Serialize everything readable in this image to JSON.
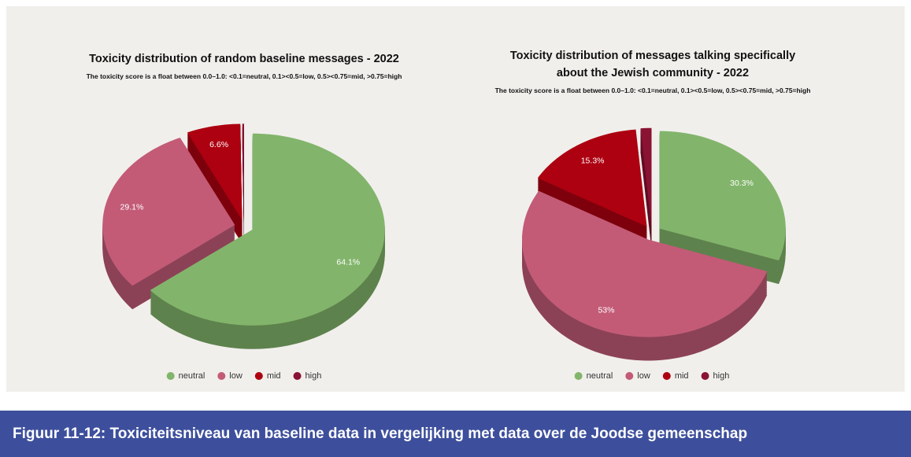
{
  "chart_data": [
    {
      "type": "pie3d",
      "title": "Toxicity distribution of random baseline messages - 2022",
      "subtitle": "The toxicity score is a float between 0.0–1.0: <0.1=neutral, 0.1><0.5=low, 0.5><0.75=mid, >0.75=high",
      "categories": [
        "neutral",
        "low",
        "mid",
        "high"
      ],
      "values": [
        64.1,
        29.1,
        6.6,
        0.2
      ],
      "value_labels": [
        "64.1%",
        "29.1%",
        "6.6%",
        null
      ],
      "colors": [
        "#82b56b",
        "#c35b77",
        "#ad0010",
        "#8a1232"
      ]
    },
    {
      "type": "pie3d",
      "title": "Toxicity distribution of messages talking specifically about the Jewish community - 2022",
      "subtitle": "The toxicity score is a float between 0.0–1.0: <0.1=neutral, 0.1><0.5=low, 0.5><0.75=mid, >0.75=high",
      "categories": [
        "neutral",
        "low",
        "mid",
        "high"
      ],
      "values": [
        30.3,
        53,
        15.3,
        1.4
      ],
      "value_labels": [
        "30.3%",
        "53%",
        "15.3%",
        null
      ],
      "colors": [
        "#82b56b",
        "#c35b77",
        "#ad0010",
        "#8a1232"
      ]
    }
  ],
  "caption": "Figuur 11-12: Toxiciteitsniveau van baseline data in vergelijking met data over de Joodse gemeenschap"
}
